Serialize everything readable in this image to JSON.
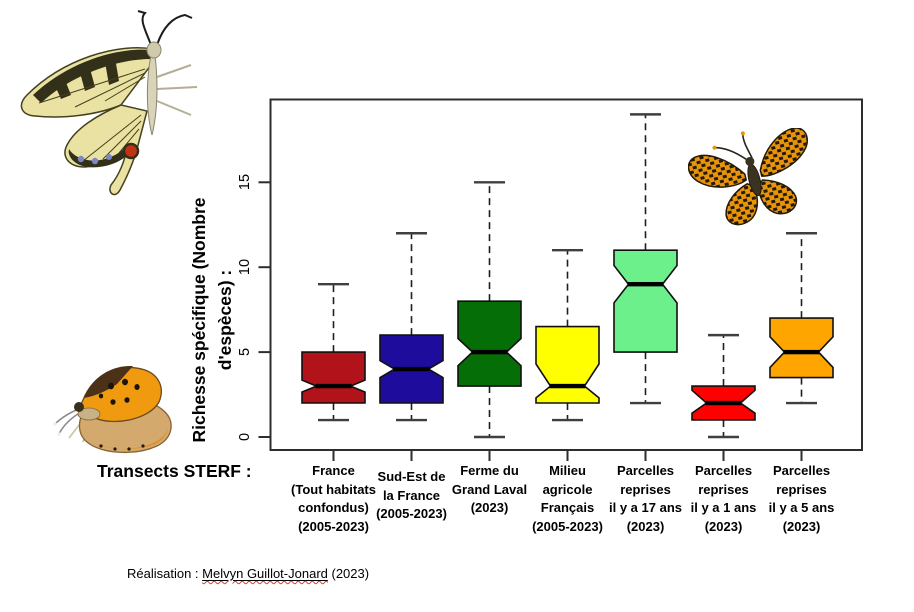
{
  "page": {
    "attribution_prefix": "Réalisation : ",
    "attribution_name": "Melvyn Guillot-Jonard",
    "attribution_suffix": " (2023)"
  },
  "chart_data": {
    "type": "boxplot",
    "title": "",
    "xlabel": "Transects STERF :",
    "ylabel": "Richesse spécifique (Nombre d'espèces) :",
    "ylabel_lines": [
      "Richesse spécifique (Nombre",
      "d'espèces) :"
    ],
    "yticks": [
      0,
      5,
      10,
      15
    ],
    "ylim": [
      -0.8,
      19.9
    ],
    "grid": false,
    "notched": true,
    "legend": "none",
    "categories": [
      "France (Tout habitats confondus) (2005-2023)",
      "Sud-Est de la France (2005-2023)",
      "Ferme du Grand Laval (2023)",
      "Milieu agricole Français (2005-2023)",
      "Parcelles reprises il y a 17 ans (2023)",
      "Parcelles reprises il y a 1 ans (2023)",
      "Parcelles reprises il y a 5 ans (2023)"
    ],
    "boxes": [
      {
        "label_lines": [
          "France",
          "(Tout habitats",
          "confondus)",
          "(2005-2023)"
        ],
        "color": "#B2131B",
        "color_name": "dark red",
        "whisker_low": 1,
        "q1": 2,
        "median": 3,
        "q3": 5,
        "whisker_high": 9,
        "notch_low": 2.65,
        "notch_high": 3.35
      },
      {
        "label_lines": [
          "Sud-Est de",
          "la France",
          "(2005-2023)"
        ],
        "color": "#1E0C9C",
        "color_name": "dark blue",
        "whisker_low": 1,
        "q1": 2,
        "median": 4,
        "q3": 6,
        "whisker_high": 12,
        "notch_low": 3.5,
        "notch_high": 4.5
      },
      {
        "label_lines": [
          "Ferme du",
          "Grand Laval",
          "(2023)"
        ],
        "color": "#066E06",
        "color_name": "dark green",
        "whisker_low": 0,
        "q1": 3,
        "median": 5,
        "q3": 8,
        "whisker_high": 15,
        "notch_low": 4.2,
        "notch_high": 5.8
      },
      {
        "label_lines": [
          "Milieu",
          "agricole",
          "Français",
          "(2005-2023)"
        ],
        "color": "#FFFF00",
        "color_name": "yellow",
        "whisker_low": 1,
        "q1": 2,
        "median": 3,
        "q3": 6.5,
        "whisker_high": 11,
        "notch_low": 2.3,
        "notch_high": 4.3
      },
      {
        "label_lines": [
          "Parcelles",
          "reprises",
          "il y a 17 ans",
          "(2023)"
        ],
        "color": "#6BF08B",
        "color_name": "light green",
        "whisker_low": 2,
        "q1": 5,
        "median": 9,
        "q3": 11,
        "whisker_high": 19,
        "notch_low": 7.9,
        "notch_high": 10.1
      },
      {
        "label_lines": [
          "Parcelles",
          "reprises",
          "il y a 1 ans",
          "(2023)"
        ],
        "color": "#FF0000",
        "color_name": "red",
        "whisker_low": 0,
        "q1": 1,
        "median": 2,
        "q3": 3,
        "whisker_high": 6,
        "notch_low": 1.4,
        "notch_high": 2.75
      },
      {
        "label_lines": [
          "Parcelles",
          "reprises",
          "il y a 5 ans",
          "(2023)"
        ],
        "color": "#FFA500",
        "color_name": "orange",
        "whisker_low": 2,
        "q1": 3.5,
        "median": 5,
        "q3": 7,
        "whisker_high": 12,
        "notch_low": 4.1,
        "notch_high": 5.9
      }
    ]
  },
  "decorative_images": [
    {
      "name": "swallowtail-butterfly"
    },
    {
      "name": "small-copper-butterfly"
    },
    {
      "name": "fritillary-butterfly"
    }
  ]
}
